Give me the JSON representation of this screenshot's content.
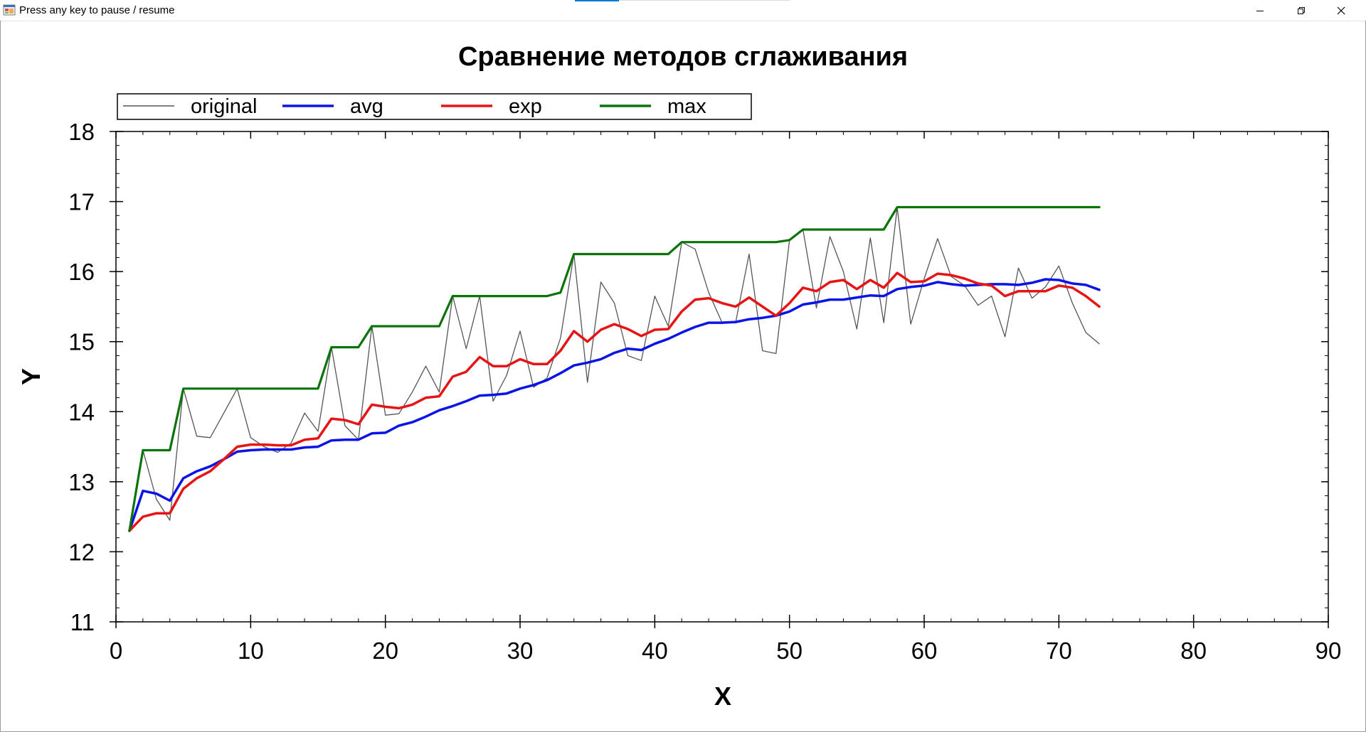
{
  "window": {
    "title": "Press any key to pause / resume",
    "icons": {
      "app": "app-window-icon",
      "minimize": "minimize-icon",
      "restore": "restore-icon",
      "close": "close-icon"
    }
  },
  "colors": {
    "original": "#555555",
    "avg": "#0a14e6",
    "exp": "#e61414",
    "max": "#0a730a",
    "axis": "#000000"
  },
  "chart_data": {
    "type": "line",
    "title": "Сравнение методов сглаживания",
    "xlabel": "X",
    "ylabel": "Y",
    "xlim": [
      0,
      90
    ],
    "ylim": [
      11,
      18
    ],
    "x_ticks": [
      0,
      10,
      20,
      30,
      40,
      50,
      60,
      70,
      80,
      90
    ],
    "y_ticks": [
      11,
      12,
      13,
      14,
      15,
      16,
      17,
      18
    ],
    "grid": false,
    "legend": {
      "position": "top-left",
      "orientation": "horizontal",
      "frame": true
    },
    "series": [
      {
        "name": "original",
        "color": "#555555",
        "points": [
          [
            1,
            12.3
          ],
          [
            2,
            13.45
          ],
          [
            3,
            12.75
          ],
          [
            4,
            12.45
          ],
          [
            5,
            14.33
          ],
          [
            6,
            13.65
          ],
          [
            7,
            13.63
          ],
          [
            8,
            13.98
          ],
          [
            9,
            14.33
          ],
          [
            10,
            13.63
          ],
          [
            11,
            13.5
          ],
          [
            12,
            13.42
          ],
          [
            13,
            13.55
          ],
          [
            14,
            13.98
          ],
          [
            15,
            13.72
          ],
          [
            16,
            14.92
          ],
          [
            17,
            13.8
          ],
          [
            18,
            13.6
          ],
          [
            19,
            15.22
          ],
          [
            20,
            13.95
          ],
          [
            21,
            13.97
          ],
          [
            22,
            14.28
          ],
          [
            23,
            14.65
          ],
          [
            24,
            14.28
          ],
          [
            25,
            15.65
          ],
          [
            26,
            14.9
          ],
          [
            27,
            15.65
          ],
          [
            28,
            14.15
          ],
          [
            29,
            14.52
          ],
          [
            30,
            15.15
          ],
          [
            31,
            14.35
          ],
          [
            32,
            14.48
          ],
          [
            33,
            15.05
          ],
          [
            34,
            16.25
          ],
          [
            35,
            14.42
          ],
          [
            36,
            15.85
          ],
          [
            37,
            15.55
          ],
          [
            38,
            14.8
          ],
          [
            39,
            14.73
          ],
          [
            40,
            15.65
          ],
          [
            41,
            15.22
          ],
          [
            42,
            16.42
          ],
          [
            43,
            16.32
          ],
          [
            44,
            15.7
          ],
          [
            45,
            15.27
          ],
          [
            46,
            15.27
          ],
          [
            47,
            16.25
          ],
          [
            48,
            14.87
          ],
          [
            49,
            14.83
          ],
          [
            50,
            16.45
          ],
          [
            51,
            16.6
          ],
          [
            52,
            15.48
          ],
          [
            53,
            16.5
          ],
          [
            54,
            16.0
          ],
          [
            55,
            15.18
          ],
          [
            56,
            16.48
          ],
          [
            57,
            15.27
          ],
          [
            58,
            16.92
          ],
          [
            59,
            15.25
          ],
          [
            60,
            15.9
          ],
          [
            61,
            16.47
          ],
          [
            62,
            15.93
          ],
          [
            63,
            15.8
          ],
          [
            64,
            15.52
          ],
          [
            65,
            15.65
          ],
          [
            66,
            15.07
          ],
          [
            67,
            16.05
          ],
          [
            68,
            15.62
          ],
          [
            69,
            15.78
          ],
          [
            70,
            16.08
          ],
          [
            71,
            15.55
          ],
          [
            72,
            15.13
          ],
          [
            73,
            14.97
          ]
        ]
      },
      {
        "name": "avg",
        "color": "#0a14e6",
        "points": [
          [
            1,
            12.3
          ],
          [
            2,
            12.87
          ],
          [
            3,
            12.83
          ],
          [
            4,
            12.73
          ],
          [
            5,
            13.05
          ],
          [
            6,
            13.15
          ],
          [
            7,
            13.22
          ],
          [
            8,
            13.32
          ],
          [
            9,
            13.43
          ],
          [
            10,
            13.45
          ],
          [
            11,
            13.46
          ],
          [
            12,
            13.46
          ],
          [
            13,
            13.46
          ],
          [
            14,
            13.49
          ],
          [
            15,
            13.5
          ],
          [
            16,
            13.59
          ],
          [
            17,
            13.6
          ],
          [
            18,
            13.6
          ],
          [
            19,
            13.69
          ],
          [
            20,
            13.7
          ],
          [
            21,
            13.8
          ],
          [
            22,
            13.85
          ],
          [
            23,
            13.93
          ],
          [
            24,
            14.02
          ],
          [
            25,
            14.08
          ],
          [
            26,
            14.15
          ],
          [
            27,
            14.23
          ],
          [
            28,
            14.24
          ],
          [
            29,
            14.26
          ],
          [
            30,
            14.33
          ],
          [
            31,
            14.38
          ],
          [
            32,
            14.45
          ],
          [
            33,
            14.55
          ],
          [
            34,
            14.66
          ],
          [
            35,
            14.7
          ],
          [
            36,
            14.75
          ],
          [
            37,
            14.84
          ],
          [
            38,
            14.9
          ],
          [
            39,
            14.88
          ],
          [
            40,
            14.97
          ],
          [
            41,
            15.04
          ],
          [
            42,
            15.13
          ],
          [
            43,
            15.21
          ],
          [
            44,
            15.27
          ],
          [
            45,
            15.27
          ],
          [
            46,
            15.28
          ],
          [
            47,
            15.32
          ],
          [
            48,
            15.34
          ],
          [
            49,
            15.37
          ],
          [
            50,
            15.43
          ],
          [
            51,
            15.53
          ],
          [
            52,
            15.56
          ],
          [
            53,
            15.6
          ],
          [
            54,
            15.6
          ],
          [
            55,
            15.63
          ],
          [
            56,
            15.66
          ],
          [
            57,
            15.65
          ],
          [
            58,
            15.75
          ],
          [
            59,
            15.78
          ],
          [
            60,
            15.8
          ],
          [
            61,
            15.85
          ],
          [
            62,
            15.82
          ],
          [
            63,
            15.8
          ],
          [
            64,
            15.81
          ],
          [
            65,
            15.82
          ],
          [
            66,
            15.82
          ],
          [
            67,
            15.81
          ],
          [
            68,
            15.84
          ],
          [
            69,
            15.89
          ],
          [
            70,
            15.88
          ],
          [
            71,
            15.83
          ],
          [
            72,
            15.81
          ],
          [
            73,
            15.74
          ]
        ]
      },
      {
        "name": "exp",
        "color": "#e61414",
        "points": [
          [
            1,
            12.3
          ],
          [
            2,
            12.5
          ],
          [
            3,
            12.55
          ],
          [
            4,
            12.55
          ],
          [
            5,
            12.9
          ],
          [
            6,
            13.05
          ],
          [
            7,
            13.15
          ],
          [
            8,
            13.32
          ],
          [
            9,
            13.5
          ],
          [
            10,
            13.53
          ],
          [
            11,
            13.53
          ],
          [
            12,
            13.52
          ],
          [
            13,
            13.52
          ],
          [
            14,
            13.6
          ],
          [
            15,
            13.62
          ],
          [
            16,
            13.9
          ],
          [
            17,
            13.88
          ],
          [
            18,
            13.82
          ],
          [
            19,
            14.1
          ],
          [
            20,
            14.07
          ],
          [
            21,
            14.05
          ],
          [
            22,
            14.1
          ],
          [
            23,
            14.2
          ],
          [
            24,
            14.22
          ],
          [
            25,
            14.5
          ],
          [
            26,
            14.57
          ],
          [
            27,
            14.78
          ],
          [
            28,
            14.65
          ],
          [
            29,
            14.65
          ],
          [
            30,
            14.75
          ],
          [
            31,
            14.68
          ],
          [
            32,
            14.68
          ],
          [
            33,
            14.87
          ],
          [
            34,
            15.15
          ],
          [
            35,
            15.0
          ],
          [
            36,
            15.17
          ],
          [
            37,
            15.25
          ],
          [
            38,
            15.18
          ],
          [
            39,
            15.08
          ],
          [
            40,
            15.17
          ],
          [
            41,
            15.18
          ],
          [
            42,
            15.43
          ],
          [
            43,
            15.6
          ],
          [
            44,
            15.62
          ],
          [
            45,
            15.55
          ],
          [
            46,
            15.5
          ],
          [
            47,
            15.63
          ],
          [
            48,
            15.5
          ],
          [
            49,
            15.37
          ],
          [
            50,
            15.55
          ],
          [
            51,
            15.77
          ],
          [
            52,
            15.72
          ],
          [
            53,
            15.85
          ],
          [
            54,
            15.88
          ],
          [
            55,
            15.75
          ],
          [
            56,
            15.88
          ],
          [
            57,
            15.77
          ],
          [
            58,
            15.98
          ],
          [
            59,
            15.85
          ],
          [
            60,
            15.86
          ],
          [
            61,
            15.97
          ],
          [
            62,
            15.95
          ],
          [
            63,
            15.9
          ],
          [
            64,
            15.83
          ],
          [
            65,
            15.8
          ],
          [
            66,
            15.65
          ],
          [
            67,
            15.72
          ],
          [
            68,
            15.72
          ],
          [
            69,
            15.72
          ],
          [
            70,
            15.8
          ],
          [
            71,
            15.77
          ],
          [
            72,
            15.65
          ],
          [
            73,
            15.5
          ]
        ]
      },
      {
        "name": "max",
        "color": "#0a730a",
        "points": [
          [
            1,
            12.3
          ],
          [
            2,
            13.45
          ],
          [
            4,
            13.45
          ],
          [
            5,
            14.33
          ],
          [
            15,
            14.33
          ],
          [
            16,
            14.92
          ],
          [
            18,
            14.92
          ],
          [
            19,
            15.22
          ],
          [
            24,
            15.22
          ],
          [
            25,
            15.65
          ],
          [
            32,
            15.65
          ],
          [
            33,
            15.7
          ],
          [
            34,
            16.25
          ],
          [
            41,
            16.25
          ],
          [
            42,
            16.42
          ],
          [
            49,
            16.42
          ],
          [
            50,
            16.45
          ],
          [
            51,
            16.6
          ],
          [
            57,
            16.6
          ],
          [
            58,
            16.92
          ],
          [
            73,
            16.92
          ]
        ]
      }
    ]
  }
}
